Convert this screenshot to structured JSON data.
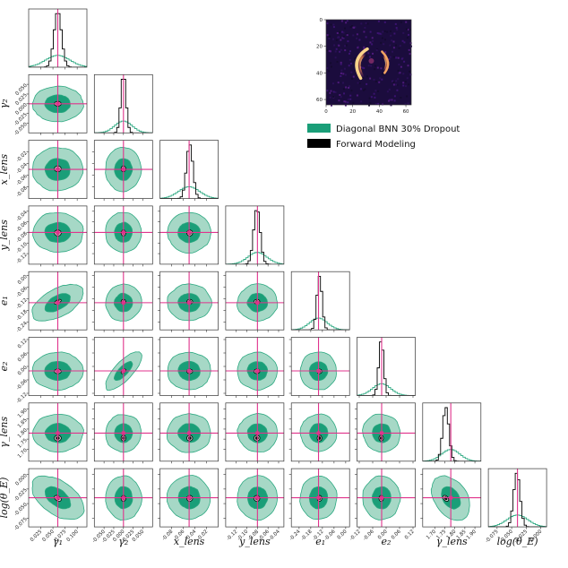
{
  "chart_data": {
    "type": "corner",
    "params": [
      {
        "key": "gamma1",
        "label": "γ₁",
        "lim": [
          0.0,
          0.12
        ],
        "truth": 0.06,
        "ticks": [
          {
            "v": 0.025,
            "t": "0.025"
          },
          {
            "v": 0.05,
            "t": "0.050"
          },
          {
            "v": 0.075,
            "t": "0.075"
          },
          {
            "v": 0.1,
            "t": "0.100"
          }
        ],
        "green_sd": 0.025,
        "black_sd": 0.0035,
        "black_mean": 0.06
      },
      {
        "key": "gamma2",
        "label": "γ₂",
        "lim": [
          -0.075,
          0.075
        ],
        "truth": 0.0,
        "ticks": [
          {
            "v": -0.05,
            "t": "-0.050"
          },
          {
            "v": -0.025,
            "t": "-0.025"
          },
          {
            "v": 0.0,
            "t": "0.000"
          },
          {
            "v": 0.025,
            "t": "0.025"
          },
          {
            "v": 0.05,
            "t": "0.050"
          }
        ],
        "green_sd": 0.022,
        "black_sd": 0.003,
        "black_mean": 0.0
      },
      {
        "key": "xlens",
        "label": "x_lens",
        "lim": [
          -0.1,
          0.0
        ],
        "truth": -0.05,
        "ticks": [
          {
            "v": -0.08,
            "t": "-0.08"
          },
          {
            "v": -0.06,
            "t": "-0.06"
          },
          {
            "v": -0.04,
            "t": "-0.04"
          },
          {
            "v": -0.02,
            "t": "-0.02"
          }
        ],
        "green_sd": 0.018,
        "black_sd": 0.0025,
        "black_mean": -0.049
      },
      {
        "key": "ylens",
        "label": "y_lens",
        "lim": [
          -0.14,
          -0.03
        ],
        "truth": -0.08,
        "ticks": [
          {
            "v": -0.12,
            "t": "-0.12"
          },
          {
            "v": -0.1,
            "t": "-0.10"
          },
          {
            "v": -0.08,
            "t": "-0.08"
          },
          {
            "v": -0.06,
            "t": "-0.06"
          },
          {
            "v": -0.04,
            "t": "-0.04"
          }
        ],
        "green_sd": 0.018,
        "black_sd": 0.0028,
        "black_mean": -0.081
      },
      {
        "key": "e1",
        "label": "e₁",
        "lim": [
          -0.28,
          0.02
        ],
        "truth": -0.14,
        "ticks": [
          {
            "v": -0.24,
            "t": "-0.24"
          },
          {
            "v": -0.18,
            "t": "-0.18"
          },
          {
            "v": -0.12,
            "t": "-0.12"
          },
          {
            "v": -0.06,
            "t": "-0.06"
          },
          {
            "v": 0.0,
            "t": "0.00"
          }
        ],
        "green_sd": 0.045,
        "black_sd": 0.006,
        "black_mean": -0.135
      },
      {
        "key": "e2",
        "label": "e₂",
        "lim": [
          -0.13,
          0.13
        ],
        "truth": -0.02,
        "ticks": [
          {
            "v": -0.12,
            "t": "-0.12"
          },
          {
            "v": -0.06,
            "t": "-0.06"
          },
          {
            "v": 0.0,
            "t": "0.00"
          },
          {
            "v": 0.06,
            "t": "0.06"
          },
          {
            "v": 0.12,
            "t": "0.12"
          }
        ],
        "green_sd": 0.04,
        "black_sd": 0.005,
        "black_mean": -0.022
      },
      {
        "key": "gammalens",
        "label": "γ_lens",
        "lim": [
          1.64,
          1.93
        ],
        "truth": 1.78,
        "ticks": [
          {
            "v": 1.7,
            "t": "1.70"
          },
          {
            "v": 1.75,
            "t": "1.75"
          },
          {
            "v": 1.8,
            "t": "1.80"
          },
          {
            "v": 1.85,
            "t": "1.85"
          },
          {
            "v": 1.9,
            "t": "1.90"
          }
        ],
        "green_sd": 0.045,
        "black_sd": 0.007,
        "black_mean": 1.755
      },
      {
        "key": "logthetaE",
        "label": "log(θ_E)",
        "lim": [
          -0.09,
          0.01
        ],
        "truth": -0.04,
        "ticks": [
          {
            "v": -0.075,
            "t": "-0.075"
          },
          {
            "v": -0.05,
            "t": "-0.050"
          },
          {
            "v": -0.025,
            "t": "-0.025"
          },
          {
            "v": 0.0,
            "t": "0.000"
          }
        ],
        "green_sd": 0.018,
        "black_sd": 0.0025,
        "black_mean": -0.041
      }
    ],
    "correlations": [
      {
        "i": 4,
        "j": 0,
        "green": 0.55,
        "black": 0.6
      },
      {
        "i": 5,
        "j": 1,
        "green": 0.75,
        "black": 0.6
      },
      {
        "i": 7,
        "j": 0,
        "green": -0.5,
        "black": -0.4
      },
      {
        "i": 7,
        "j": 6,
        "green": -0.35,
        "black": -0.4
      }
    ],
    "legend": {
      "position": "upper-right",
      "entries": [
        {
          "name": "Diagonal BNN 30% Dropout",
          "color": "#1a9e78"
        },
        {
          "name": "Forward Modeling",
          "color": "#000000"
        }
      ]
    },
    "truth_color": "#e0338c",
    "green_levels": {
      "inner": "#1a9e78",
      "outer": "#a6d8c6",
      "outline": "#2ba880"
    },
    "inset_image": {
      "xlim": [
        0,
        64
      ],
      "ylim": [
        0,
        64
      ],
      "xticks": [
        {
          "v": 0,
          "t": "0"
        },
        {
          "v": 20,
          "t": "20"
        },
        {
          "v": 40,
          "t": "40"
        },
        {
          "v": 60,
          "t": "60"
        }
      ],
      "yticks": [
        {
          "v": 0,
          "t": "0"
        },
        {
          "v": 20,
          "t": "20"
        },
        {
          "v": 40,
          "t": "40"
        },
        {
          "v": 60,
          "t": "60"
        }
      ],
      "colormap": "magma"
    }
  }
}
